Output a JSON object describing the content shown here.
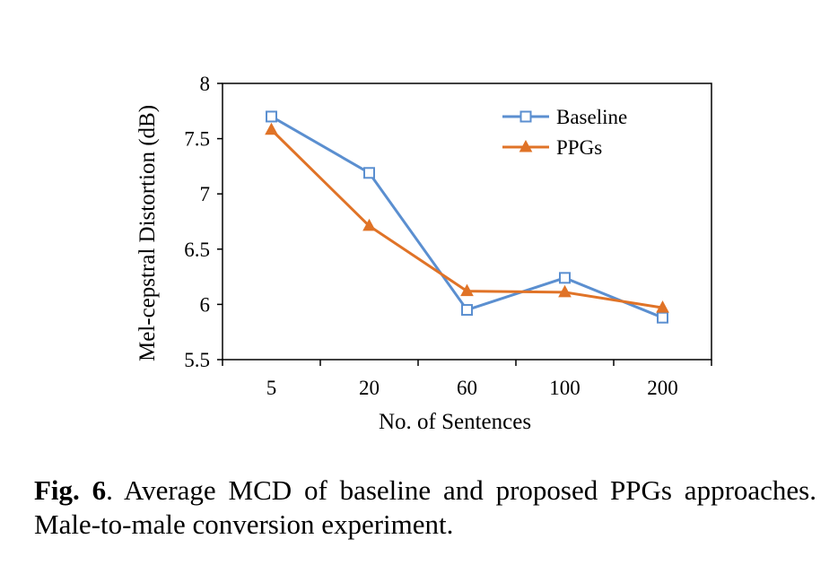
{
  "chart_data": {
    "type": "line",
    "categories": [
      "5",
      "20",
      "60",
      "100",
      "200"
    ],
    "series": [
      {
        "name": "Baseline",
        "values": [
          7.7,
          7.19,
          5.95,
          6.24,
          5.88
        ],
        "color": "#5b8fd0",
        "marker": "square-open"
      },
      {
        "name": "PPGs",
        "values": [
          7.58,
          6.71,
          6.12,
          6.11,
          5.97
        ],
        "color": "#e07327",
        "marker": "triangle"
      }
    ],
    "xlabel": "No. of Sentences",
    "ylabel": "Mel-cepstral Distortion (dB)",
    "ylim": [
      5.5,
      8
    ],
    "yticks": [
      "5.5",
      "6",
      "6.5",
      "7",
      "7.5",
      "8"
    ],
    "grid": false,
    "legend": "top-right"
  },
  "caption": {
    "label": "Fig. 6",
    "text": ".   Average MCD of baseline and proposed PPGs approaches. Male-to-male conversion experiment."
  }
}
